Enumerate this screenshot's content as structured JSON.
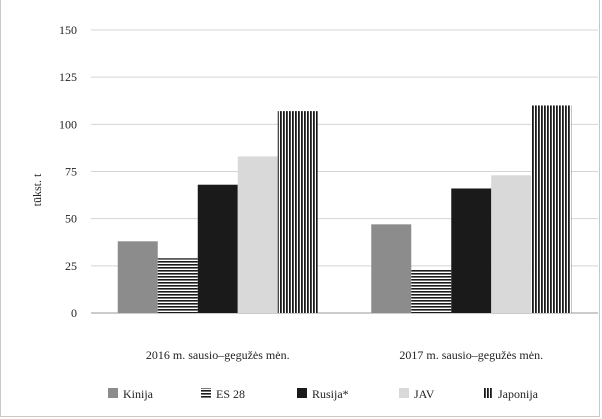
{
  "chart_data": {
    "type": "bar",
    "title": "",
    "xlabel": "",
    "ylabel": "tūkst. t",
    "ylim": [
      0,
      150
    ],
    "yticks": [
      0,
      25,
      50,
      75,
      100,
      125,
      150
    ],
    "grid": true,
    "legend": "bottom",
    "categories": [
      "2016 m. sausio–gegužės mėn.",
      "2017 m. sausio–gegužės mėn."
    ],
    "series": [
      {
        "name": "Kinija",
        "values": [
          38,
          47
        ],
        "color": "#8c8c8c",
        "pattern": "solid"
      },
      {
        "name": "ES 28",
        "values": [
          29,
          23
        ],
        "color": "#1a1a1a",
        "pattern": "hlines"
      },
      {
        "name": "Rusija*",
        "values": [
          68,
          66
        ],
        "color": "#1a1a1a",
        "pattern": "solid"
      },
      {
        "name": "JAV",
        "values": [
          83,
          73
        ],
        "color": "#d9d9d9",
        "pattern": "solid"
      },
      {
        "name": "Japonija",
        "values": [
          107,
          110
        ],
        "color": "#1a1a1a",
        "pattern": "vlines"
      }
    ]
  }
}
